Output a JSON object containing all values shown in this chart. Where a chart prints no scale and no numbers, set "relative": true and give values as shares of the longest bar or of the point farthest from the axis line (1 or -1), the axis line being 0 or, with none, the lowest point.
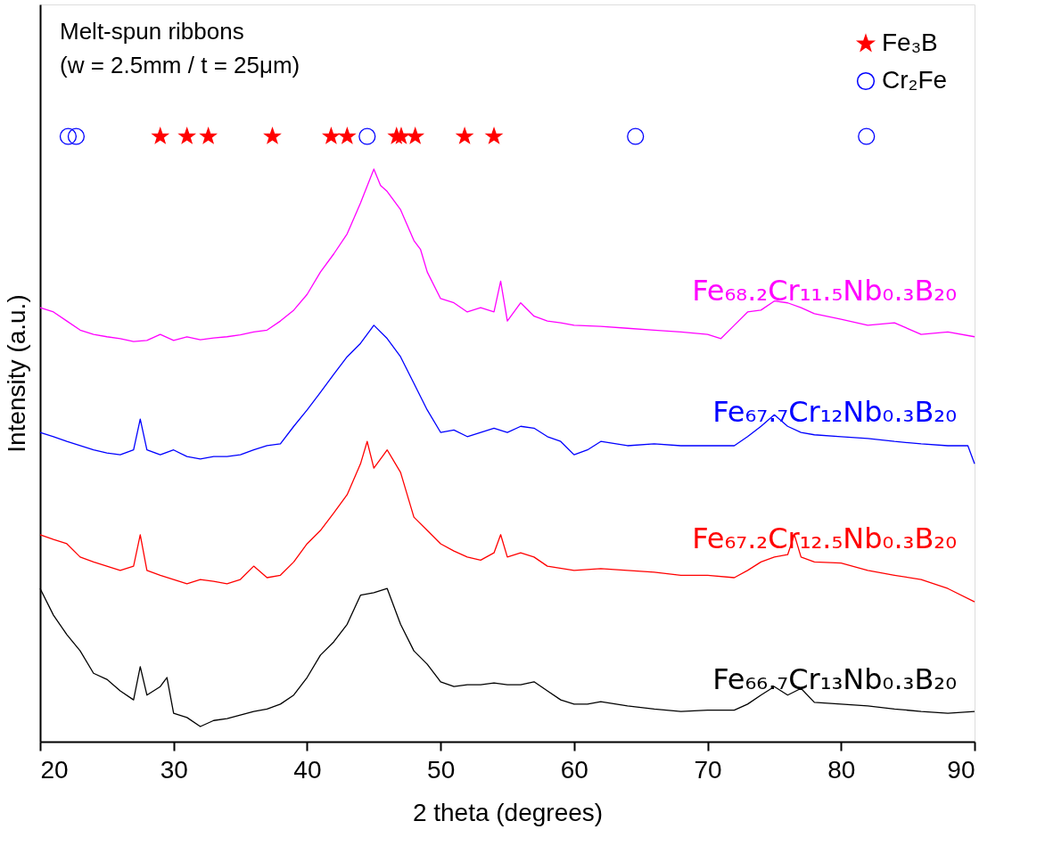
{
  "chart_data": {
    "type": "line",
    "relative": true,
    "xlabel": "2 theta (degrees)",
    "ylabel": "Intensity (a.u.)",
    "xlim": [
      20,
      90
    ],
    "xticks": [
      20,
      30,
      40,
      50,
      60,
      70,
      80,
      90
    ],
    "grid": false,
    "legend": "top right",
    "annotations": [
      "Melt-spun ribbons",
      "(w = 2.5mm / t = 25μm)"
    ],
    "series": [
      {
        "name": "Fe₆₈.₂Cr₁₁.₅Nb₀.₃B₂₀",
        "color": "#ff00ff",
        "x": [
          20,
          21,
          22,
          23,
          24,
          25,
          26,
          27,
          28,
          29,
          30,
          31,
          32,
          33,
          34,
          35,
          36,
          37,
          38,
          39,
          40,
          41,
          42,
          43,
          44,
          45,
          45.5,
          46,
          47,
          48,
          48.5,
          49,
          50,
          51,
          52,
          53,
          54,
          54.5,
          55,
          56,
          57,
          58,
          59,
          60,
          62,
          64,
          66,
          68,
          70,
          71,
          72,
          73,
          74,
          75,
          76,
          77,
          78,
          80,
          82,
          84,
          86,
          88,
          90
        ],
        "values": [
          0.717,
          0.71,
          0.695,
          0.68,
          0.673,
          0.669,
          0.666,
          0.661,
          0.663,
          0.673,
          0.663,
          0.669,
          0.664,
          0.667,
          0.669,
          0.672,
          0.677,
          0.68,
          0.695,
          0.713,
          0.739,
          0.776,
          0.806,
          0.839,
          0.89,
          0.946,
          0.919,
          0.909,
          0.879,
          0.828,
          0.813,
          0.776,
          0.732,
          0.725,
          0.71,
          0.717,
          0.71,
          0.761,
          0.695,
          0.725,
          0.703,
          0.695,
          0.692,
          0.688,
          0.686,
          0.683,
          0.68,
          0.677,
          0.673,
          0.666,
          0.688,
          0.71,
          0.713,
          0.728,
          0.725,
          0.717,
          0.707,
          0.698,
          0.688,
          0.692,
          0.673,
          0.677,
          0.669
        ]
      },
      {
        "name": "Fe₆₇.₇Cr₁₂Nb₀.₃B₂₀",
        "color": "#0000ff",
        "x": [
          20,
          21,
          22,
          24,
          25,
          26,
          27,
          27.5,
          28,
          29,
          30,
          31,
          32,
          33,
          34,
          35,
          36,
          37,
          38,
          39,
          40,
          41,
          42,
          43,
          44,
          45,
          46,
          47,
          48,
          49,
          50,
          51,
          52,
          53,
          54,
          55,
          56,
          57,
          58,
          59,
          60,
          61,
          62,
          64,
          66,
          68,
          70,
          72,
          73,
          74,
          75,
          76,
          77,
          78,
          80,
          82,
          84,
          86,
          88,
          89.5,
          90
        ],
        "values": [
          0.511,
          0.504,
          0.496,
          0.482,
          0.477,
          0.474,
          0.482,
          0.533,
          0.482,
          0.474,
          0.482,
          0.471,
          0.467,
          0.471,
          0.471,
          0.474,
          0.482,
          0.489,
          0.492,
          0.521,
          0.548,
          0.577,
          0.607,
          0.636,
          0.658,
          0.688,
          0.666,
          0.636,
          0.592,
          0.548,
          0.511,
          0.515,
          0.504,
          0.511,
          0.518,
          0.511,
          0.521,
          0.518,
          0.504,
          0.496,
          0.474,
          0.482,
          0.496,
          0.489,
          0.492,
          0.489,
          0.489,
          0.489,
          0.504,
          0.521,
          0.54,
          0.521,
          0.511,
          0.507,
          0.504,
          0.501,
          0.496,
          0.492,
          0.489,
          0.489,
          0.459
        ]
      },
      {
        "name": "Fe₆₇.₂Cr₁₂.₅Nb₀.₃B₂₀",
        "color": "#ff0000",
        "x": [
          20,
          21,
          22,
          23,
          24,
          25,
          26,
          27,
          27.5,
          28,
          29,
          30,
          31,
          32,
          33,
          34,
          35,
          36,
          37,
          38,
          39,
          40,
          41,
          42,
          43,
          44,
          44.5,
          45,
          46,
          47,
          48,
          49,
          50,
          51,
          52,
          53,
          54,
          54.5,
          55,
          56,
          57,
          58,
          60,
          62,
          64,
          66,
          68,
          70,
          72,
          73,
          74,
          75,
          76,
          76.5,
          77,
          78,
          80,
          82,
          84,
          86,
          88,
          90
        ],
        "values": [
          0.342,
          0.334,
          0.327,
          0.305,
          0.297,
          0.29,
          0.283,
          0.29,
          0.342,
          0.283,
          0.275,
          0.268,
          0.261,
          0.268,
          0.265,
          0.261,
          0.268,
          0.29,
          0.271,
          0.275,
          0.297,
          0.327,
          0.349,
          0.378,
          0.408,
          0.459,
          0.496,
          0.452,
          0.482,
          0.445,
          0.371,
          0.349,
          0.327,
          0.315,
          0.305,
          0.3,
          0.312,
          0.342,
          0.305,
          0.312,
          0.305,
          0.29,
          0.283,
          0.286,
          0.283,
          0.28,
          0.275,
          0.275,
          0.271,
          0.283,
          0.297,
          0.305,
          0.309,
          0.342,
          0.305,
          0.297,
          0.295,
          0.283,
          0.275,
          0.268,
          0.253,
          0.231
        ]
      },
      {
        "name": "Fe₆₆.₇Cr₁₃Nb₀.₃B₂₀",
        "color": "#000000",
        "x": [
          20,
          21,
          22,
          23,
          24,
          25,
          26,
          27,
          27.5,
          28,
          29,
          29.5,
          30,
          31,
          32,
          33,
          34,
          35,
          36,
          37,
          38,
          39,
          40,
          41,
          42,
          43,
          44,
          45,
          46,
          47,
          48,
          49,
          50,
          51,
          52,
          53,
          54,
          55,
          56,
          57,
          58,
          59,
          60,
          61,
          62,
          64,
          66,
          68,
          70,
          72,
          73,
          74,
          75,
          76,
          77,
          78,
          80,
          82,
          84,
          86,
          88,
          90
        ],
        "values": [
          0.253,
          0.209,
          0.177,
          0.15,
          0.113,
          0.103,
          0.084,
          0.069,
          0.124,
          0.077,
          0.091,
          0.106,
          0.047,
          0.04,
          0.025,
          0.035,
          0.038,
          0.044,
          0.05,
          0.054,
          0.062,
          0.077,
          0.106,
          0.143,
          0.165,
          0.194,
          0.242,
          0.246,
          0.253,
          0.194,
          0.15,
          0.128,
          0.099,
          0.091,
          0.094,
          0.094,
          0.097,
          0.094,
          0.094,
          0.099,
          0.084,
          0.069,
          0.062,
          0.062,
          0.066,
          0.059,
          0.054,
          0.05,
          0.052,
          0.052,
          0.062,
          0.077,
          0.091,
          0.077,
          0.088,
          0.065,
          0.062,
          0.059,
          0.054,
          0.05,
          0.047,
          0.05
        ]
      },
      {
        "name": "Fe₃B",
        "color": "#ff0000",
        "type": "scatter",
        "marker": "star",
        "x": [
          29.0,
          31.0,
          32.6,
          37.4,
          41.8,
          43.0,
          46.7,
          47.05,
          48.1,
          51.8,
          54.0
        ],
        "values": [
          1,
          1,
          1,
          1,
          1,
          1,
          1,
          1,
          1,
          1,
          1
        ]
      },
      {
        "name": "Cr₂Fe",
        "color": "#0000ff",
        "type": "scatter",
        "marker": "circle",
        "x": [
          22.1,
          22.7,
          44.5,
          64.6,
          81.9
        ],
        "values": [
          1,
          1,
          1,
          1,
          1
        ]
      }
    ]
  }
}
